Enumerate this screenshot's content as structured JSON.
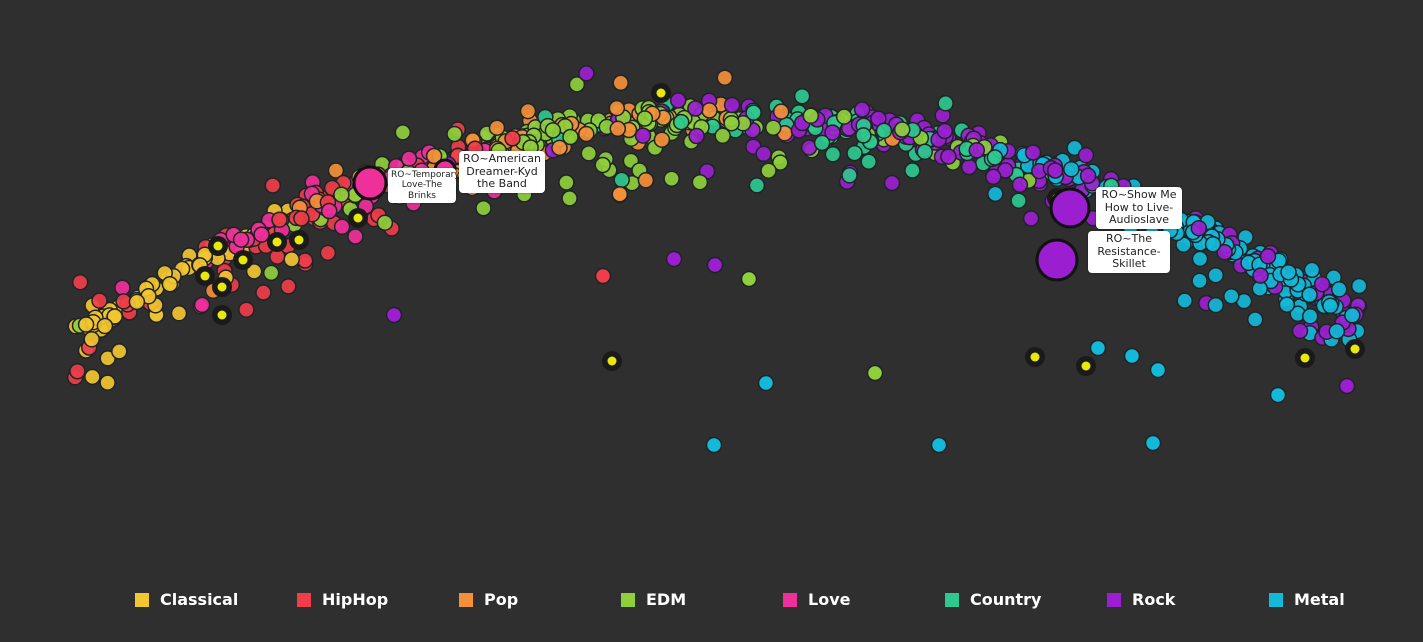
{
  "chart_data": {
    "type": "scatter",
    "title": "",
    "xlabel": "",
    "ylabel": "",
    "grid": false,
    "legend_position": "bottom",
    "genres": [
      {
        "name": "Classical",
        "color": "#f2c531"
      },
      {
        "name": "HipHop",
        "color": "#ef3e4a"
      },
      {
        "name": "Pop",
        "color": "#f4903a"
      },
      {
        "name": "EDM",
        "color": "#8fcf3c"
      },
      {
        "name": "Love",
        "color": "#f0309a"
      },
      {
        "name": "Country",
        "color": "#2ec98f"
      },
      {
        "name": "Rock",
        "color": "#9b1fd0"
      },
      {
        "name": "Metal",
        "color": "#14b8d8"
      }
    ],
    "highlight_color": "#e8e80c",
    "labeled_points": [
      {
        "label": "RO~Temporary Love-The Brinks",
        "genre": "Love",
        "x": 0.24,
        "y": 0.62
      },
      {
        "label": "RO~American Dreamer-Kyd the Band",
        "genre": "Pop",
        "x": 0.31,
        "y": 0.68
      },
      {
        "label": "RO~Show Me How to Live-Audioslave",
        "genre": "Rock",
        "x": 0.75,
        "y": 0.58
      },
      {
        "label": "RO~The Resistance-Skillet",
        "genre": "Rock",
        "x": 0.74,
        "y": 0.44
      }
    ]
  }
}
